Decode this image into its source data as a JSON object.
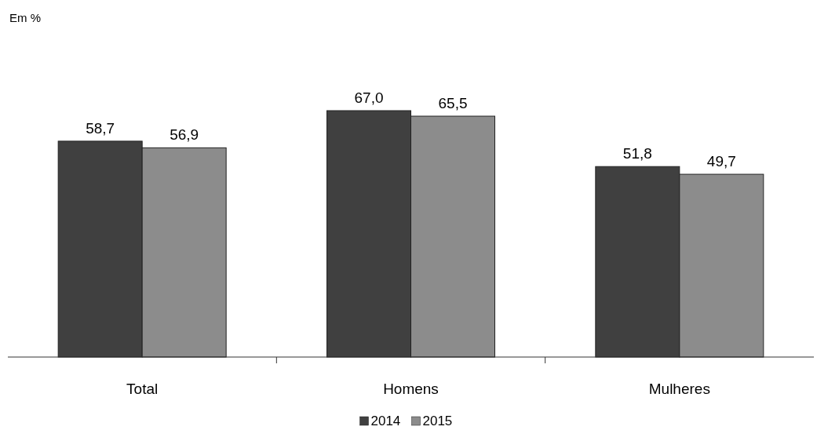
{
  "chart_data": {
    "type": "bar",
    "annotations": [
      "Em %"
    ],
    "categories": [
      "Total",
      "Homens",
      "Mulheres"
    ],
    "series": [
      {
        "name": "2014",
        "color": "#404040",
        "values": [
          58.7,
          67.0,
          51.8
        ],
        "value_labels": [
          "58,7",
          "67,0",
          "51,8"
        ]
      },
      {
        "name": "2015",
        "color": "#8c8c8c",
        "values": [
          56.9,
          65.5,
          49.7
        ],
        "value_labels": [
          "56,9",
          "65,5",
          "49,7"
        ]
      }
    ],
    "legend": "bottom",
    "tick_labels": "x"
  }
}
